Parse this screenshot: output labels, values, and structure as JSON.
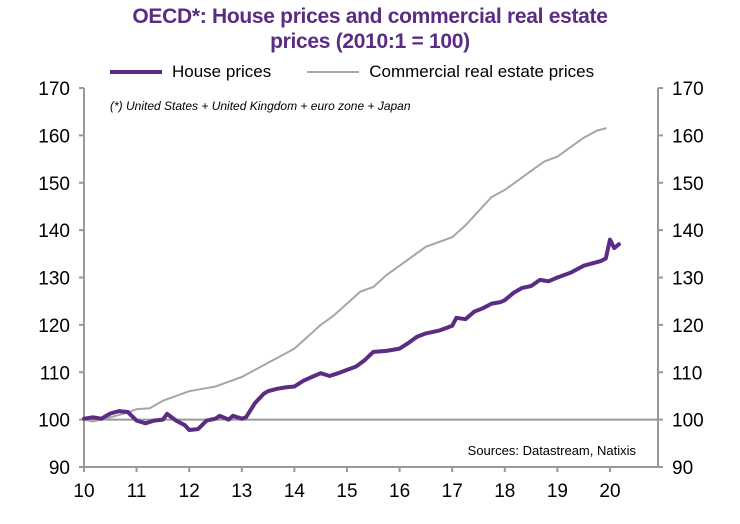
{
  "chart_data": {
    "type": "line",
    "title_line1": "OECD*:  House prices and commercial real estate",
    "title_line2": "prices (2010:1 = 100)",
    "xlabel": "",
    "ylabel": "",
    "xlim": [
      2010,
      2020.9
    ],
    "ylim": [
      90,
      170
    ],
    "yticks": [
      90,
      100,
      110,
      120,
      130,
      140,
      150,
      160,
      170
    ],
    "xticks": [
      {
        "value": 2010,
        "label": "10"
      },
      {
        "value": 2011,
        "label": "11"
      },
      {
        "value": 2012,
        "label": "12"
      },
      {
        "value": 2013,
        "label": "13"
      },
      {
        "value": 2014,
        "label": "14"
      },
      {
        "value": 2015,
        "label": "15"
      },
      {
        "value": 2016,
        "label": "16"
      },
      {
        "value": 2017,
        "label": "17"
      },
      {
        "value": 2018,
        "label": "18"
      },
      {
        "value": 2019,
        "label": "19"
      },
      {
        "value": 2020,
        "label": "20"
      }
    ],
    "reference_line": 100,
    "legend_position": "top",
    "note": "(*) United States + United Kingdom + euro zone + Japan",
    "source": "Sources:  Datastream,  Natixis",
    "series": [
      {
        "name": "House prices",
        "color": "#5b2c83",
        "x": [
          2010.0,
          2010.17,
          2010.33,
          2010.5,
          2010.67,
          2010.83,
          2011.0,
          2011.17,
          2011.33,
          2011.5,
          2011.58,
          2011.75,
          2011.92,
          2012.0,
          2012.17,
          2012.33,
          2012.5,
          2012.58,
          2012.75,
          2012.83,
          2013.0,
          2013.08,
          2013.25,
          2013.42,
          2013.5,
          2013.67,
          2013.83,
          2014.0,
          2014.17,
          2014.33,
          2014.5,
          2014.67,
          2014.83,
          2015.0,
          2015.17,
          2015.33,
          2015.5,
          2015.75,
          2016.0,
          2016.17,
          2016.33,
          2016.5,
          2016.75,
          2017.0,
          2017.08,
          2017.25,
          2017.42,
          2017.58,
          2017.75,
          2017.92,
          2018.0,
          2018.17,
          2018.33,
          2018.5,
          2018.67,
          2018.83,
          2019.0,
          2019.25,
          2019.5,
          2019.67,
          2019.83,
          2019.92,
          2020.0,
          2020.08,
          2020.17
        ],
        "values": [
          100.2,
          100.5,
          100.2,
          101.3,
          101.8,
          101.6,
          99.8,
          99.2,
          99.8,
          100.0,
          101.2,
          99.8,
          98.8,
          97.8,
          98.0,
          99.8,
          100.2,
          100.8,
          100.0,
          100.8,
          100.2,
          100.5,
          103.5,
          105.5,
          106.0,
          106.5,
          106.8,
          107.0,
          108.2,
          109.0,
          109.8,
          109.2,
          109.8,
          110.5,
          111.2,
          112.5,
          114.3,
          114.5,
          115.0,
          116.2,
          117.5,
          118.2,
          118.8,
          119.8,
          121.5,
          121.2,
          122.8,
          123.5,
          124.5,
          124.8,
          125.2,
          126.8,
          127.8,
          128.2,
          129.5,
          129.2,
          130.0,
          131.0,
          132.5,
          133.0,
          133.5,
          134.0,
          138.0,
          136.2,
          137.0
        ]
      },
      {
        "name": "Commercial real estate prices",
        "color": "#a6a6a6",
        "x": [
          2010.0,
          2010.17,
          2010.33,
          2010.5,
          2010.67,
          2010.83,
          2011.0,
          2011.25,
          2011.5,
          2011.75,
          2012.0,
          2012.25,
          2012.5,
          2012.75,
          2013.0,
          2013.25,
          2013.5,
          2013.75,
          2014.0,
          2014.25,
          2014.5,
          2014.75,
          2015.0,
          2015.25,
          2015.5,
          2015.75,
          2016.0,
          2016.25,
          2016.5,
          2016.75,
          2017.0,
          2017.25,
          2017.5,
          2017.75,
          2018.0,
          2018.25,
          2018.5,
          2018.75,
          2019.0,
          2019.25,
          2019.5,
          2019.75,
          2019.92
        ],
        "values": [
          100.0,
          99.6,
          100.0,
          100.5,
          101.0,
          101.5,
          102.2,
          102.4,
          104.0,
          105.0,
          106.0,
          106.5,
          107.0,
          108.0,
          109.0,
          110.5,
          112.0,
          113.5,
          115.0,
          117.5,
          120.0,
          122.0,
          124.5,
          127.0,
          128.0,
          130.5,
          132.5,
          134.5,
          136.5,
          137.5,
          138.5,
          141.0,
          144.0,
          147.0,
          148.5,
          150.5,
          152.5,
          154.5,
          155.5,
          157.5,
          159.5,
          161.0,
          161.5
        ]
      }
    ]
  }
}
